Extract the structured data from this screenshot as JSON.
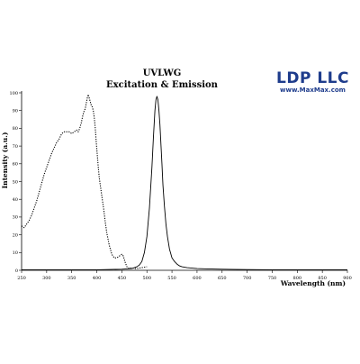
{
  "chart_data": {
    "type": "line",
    "title": "UVLWG",
    "subtitle": "Excitation & Emission",
    "xlabel": "Wavelength (nm)",
    "ylabel": "Intensity (a.u.)",
    "xlim": [
      250,
      900
    ],
    "ylim": [
      0,
      100
    ],
    "x_ticks": [
      250,
      300,
      350,
      400,
      450,
      500,
      550,
      600,
      650,
      700,
      750,
      800,
      850,
      900
    ],
    "y_ticks": [
      0,
      10,
      20,
      30,
      40,
      50,
      60,
      70,
      80,
      90,
      100
    ],
    "grid": false,
    "legend": "none",
    "series": [
      {
        "style": "dotted",
        "color": "#000000",
        "x": [
          250,
          255,
          260,
          265,
          270,
          275,
          280,
          285,
          290,
          295,
          300,
          305,
          310,
          315,
          320,
          325,
          330,
          335,
          340,
          345,
          350,
          355,
          360,
          363,
          366,
          369,
          372,
          375,
          377,
          379,
          381,
          383,
          385,
          387,
          389,
          391,
          393,
          395,
          397,
          399,
          401,
          403,
          405,
          408,
          411,
          414,
          417,
          420,
          425,
          430,
          435,
          440,
          445,
          450,
          453,
          456,
          460,
          465,
          470,
          475,
          480,
          490,
          500
        ],
        "y": [
          25,
          24,
          26,
          28,
          31,
          35,
          39,
          44,
          49,
          54,
          58,
          62,
          66,
          69,
          72,
          74,
          77,
          78,
          78,
          78,
          77,
          78,
          79,
          78,
          80,
          83,
          87,
          90,
          91,
          94,
          97,
          99,
          97,
          95,
          93,
          92,
          90,
          86,
          80,
          72,
          65,
          58,
          52,
          46,
          40,
          34,
          27,
          21,
          14,
          9,
          7,
          7,
          8,
          9,
          8,
          5,
          2,
          1,
          1.5,
          1,
          1,
          1.5,
          2
        ]
      },
      {
        "style": "solid",
        "color": "#000000",
        "x": [
          250,
          300,
          400,
          450,
          470,
          480,
          485,
          490,
          495,
          500,
          505,
          510,
          513,
          516,
          518,
          520,
          522,
          524,
          526,
          528,
          530,
          532,
          535,
          538,
          541,
          545,
          550,
          555,
          560,
          565,
          570,
          580,
          600,
          620,
          650,
          700,
          750,
          800,
          850,
          900
        ],
        "y": [
          0.3,
          0.3,
          0.3,
          0.6,
          1,
          2,
          3,
          5,
          10,
          19,
          35,
          58,
          75,
          90,
          96,
          98,
          96,
          90,
          82,
          71,
          60,
          48,
          36,
          26,
          19,
          12,
          7,
          5,
          3.5,
          2.5,
          2,
          1.5,
          1,
          0.8,
          0.6,
          0.4,
          0.3,
          0.3,
          0.3,
          0.3
        ]
      }
    ]
  },
  "brand": {
    "name": "LDP LLC",
    "url": "www.MaxMax.com"
  }
}
